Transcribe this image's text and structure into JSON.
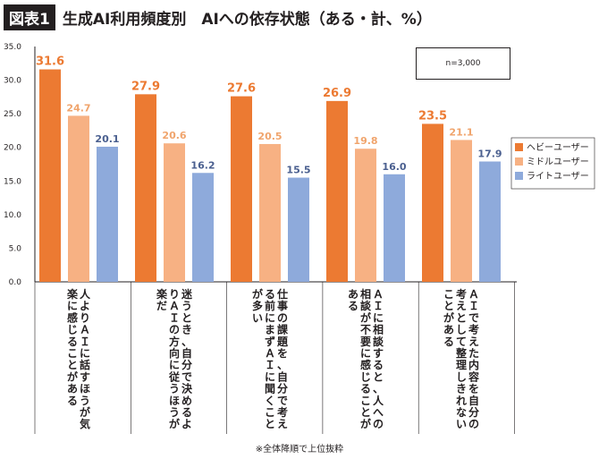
{
  "figure_label": "図表1",
  "title": "生成AI利用頻度別　AIへの依存状態（ある・計、%）",
  "sample_note": "n=3,000",
  "footnote": "※全体降順で上位抜粋",
  "colors": {
    "heavy": "#ec7a32",
    "middle": "#f7b183",
    "light": "#8eaadb"
  },
  "chart_data": {
    "type": "bar",
    "title": "生成AI利用頻度別　AIへの依存状態（ある・計、%）",
    "xlabel": "",
    "ylabel": "",
    "ylim": [
      0,
      35
    ],
    "yticks": [
      "0.0",
      "5.0",
      "10.0",
      "15.0",
      "20.0",
      "25.0",
      "30.0",
      "35.0"
    ],
    "grid": false,
    "legend_position": "right",
    "categories": [
      "人よりＡＩに話すほうが気楽に感じることがある",
      "迷うとき、自分で決めるよりＡＩの方向に従うほうが楽だ",
      "仕事の課題を、自分で考える前にまずＡＩに聞くことが多い",
      "ＡＩに相談すると、人への相談が不要に感じることがある",
      "ＡＩで考えた内容を自分の考えとして整理しきれないことがある"
    ],
    "series": [
      {
        "name": "ヘビーユーザー",
        "values": [
          31.6,
          27.9,
          27.6,
          26.9,
          23.5
        ]
      },
      {
        "name": "ミドルユーザー",
        "values": [
          24.7,
          20.6,
          20.5,
          19.8,
          21.1
        ]
      },
      {
        "name": "ライトユーザー",
        "values": [
          20.1,
          16.2,
          15.5,
          16.0,
          17.9
        ]
      }
    ],
    "value_labels": [
      [
        "31.6",
        "27.9",
        "27.6",
        "26.9",
        "23.5"
      ],
      [
        "24.7",
        "20.6",
        "20.5",
        "19.8",
        "21.1"
      ],
      [
        "20.1",
        "16.2",
        "15.5",
        "16.0",
        "17.9"
      ]
    ]
  }
}
